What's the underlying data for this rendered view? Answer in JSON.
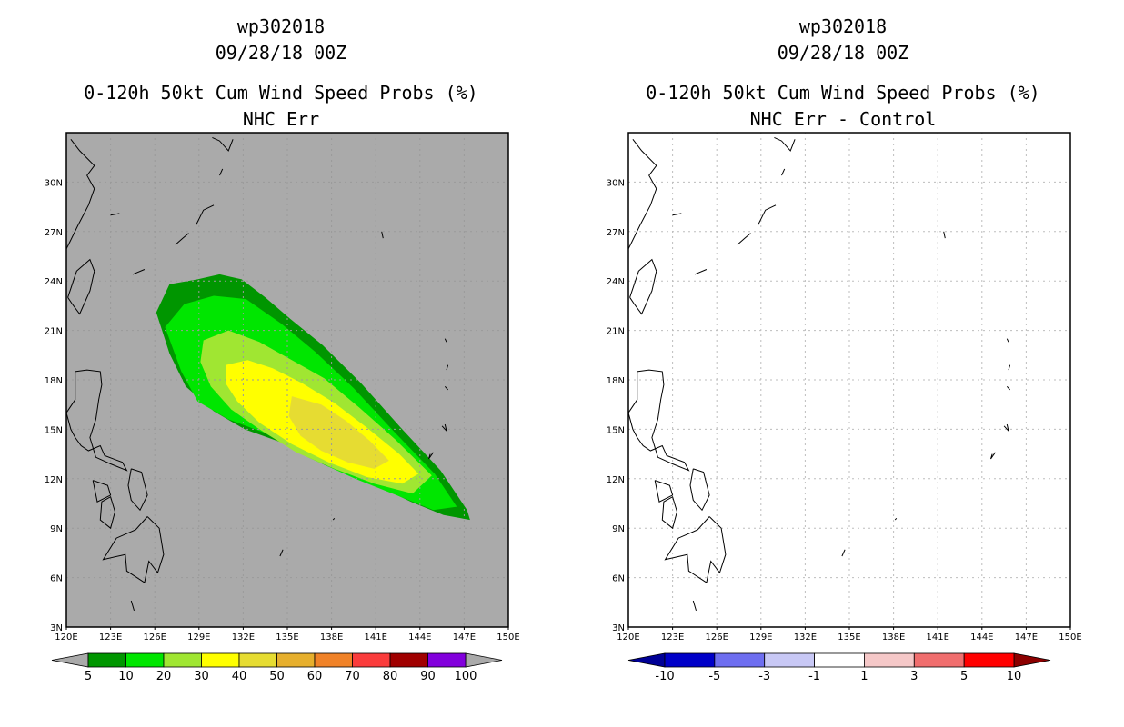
{
  "panels": [
    {
      "id": "left",
      "storm": "wp302018",
      "date": "09/28/18 00Z",
      "title": "0-120h 50kt Cum Wind Speed Probs (%)",
      "subtitle": "NHC Err",
      "map_background": "#aaaaaa",
      "colorbar_labels": [
        "5",
        "10",
        "20",
        "30",
        "40",
        "50",
        "60",
        "70",
        "80",
        "90",
        "100"
      ],
      "colorbar_colors": [
        "#009600",
        "#00e600",
        "#a0e632",
        "#ffff00",
        "#e6dc32",
        "#e6af2d",
        "#f08228",
        "#fa3c3c",
        "#a00000",
        "#8200dc"
      ],
      "under_color": "#aaaaaa",
      "over_color": "#aaaaaa"
    },
    {
      "id": "right",
      "storm": "wp302018",
      "date": "09/28/18 00Z",
      "title": "0-120h 50kt Cum Wind Speed Probs (%)",
      "subtitle": "NHC Err - Control",
      "map_background": "#ffffff",
      "colorbar_labels": [
        "-10",
        "-5",
        "-3",
        "-1",
        "1",
        "3",
        "5",
        "10"
      ],
      "colorbar_colors": [
        "#0000c8",
        "#6e6ef0",
        "#c8c8f5",
        "#ffffff",
        "#f5c8c8",
        "#f06e6e",
        "#ff0000"
      ],
      "under_color": "#000096",
      "over_color": "#8c0000"
    }
  ],
  "axes": {
    "lon_ticks": [
      "120E",
      "123E",
      "126E",
      "129E",
      "132E",
      "135E",
      "138E",
      "141E",
      "144E",
      "147E",
      "150E"
    ],
    "lat_ticks": [
      "3N",
      "6N",
      "9N",
      "12N",
      "15N",
      "18N",
      "21N",
      "24N",
      "27N",
      "30N"
    ],
    "lon_range": [
      120,
      150
    ],
    "lat_range": [
      3,
      33
    ]
  },
  "chart_data": [
    {
      "type": "heatmap",
      "title": "0-120h 50kt Cum Wind Speed Probs (%)",
      "subtitle": "NHC Err",
      "storm": "wp302018",
      "date": "09/28/18 00Z",
      "xlabel": "Longitude",
      "ylabel": "Latitude",
      "xlim": [
        120,
        150
      ],
      "ylim": [
        3,
        33
      ],
      "contour_levels": [
        5,
        10,
        20,
        30,
        40,
        50,
        60,
        70,
        80,
        90,
        100
      ],
      "contours": [
        {
          "level": 5,
          "color": "#009600",
          "polygon": [
            [
              126.1,
              22.1
            ],
            [
              127.0,
              23.8
            ],
            [
              128.9,
              24.1
            ],
            [
              130.4,
              24.4
            ],
            [
              131.9,
              24.1
            ],
            [
              133.5,
              23.0
            ],
            [
              135.2,
              21.7
            ],
            [
              137.4,
              20.1
            ],
            [
              140.0,
              17.8
            ],
            [
              142.7,
              15.1
            ],
            [
              145.4,
              12.5
            ],
            [
              147.2,
              10.1
            ],
            [
              147.4,
              9.5
            ],
            [
              145.6,
              9.8
            ],
            [
              143.4,
              10.6
            ],
            [
              140.8,
              11.7
            ],
            [
              137.6,
              12.8
            ],
            [
              134.6,
              14.2
            ],
            [
              132.1,
              15.0
            ],
            [
              130.0,
              16.1
            ],
            [
              128.1,
              17.6
            ],
            [
              127.0,
              19.6
            ]
          ]
        },
        {
          "level": 10,
          "color": "#00e600",
          "polygon": [
            [
              126.7,
              21.2
            ],
            [
              128.0,
              22.6
            ],
            [
              130.0,
              23.1
            ],
            [
              132.2,
              22.9
            ],
            [
              134.6,
              21.4
            ],
            [
              136.9,
              19.7
            ],
            [
              139.5,
              17.5
            ],
            [
              142.2,
              14.9
            ],
            [
              145.0,
              12.3
            ],
            [
              146.5,
              10.3
            ],
            [
              144.9,
              10.1
            ],
            [
              142.4,
              11.0
            ],
            [
              139.6,
              12.0
            ],
            [
              136.4,
              13.3
            ],
            [
              133.4,
              14.8
            ],
            [
              131.0,
              15.6
            ],
            [
              128.9,
              16.7
            ],
            [
              127.8,
              18.5
            ]
          ]
        },
        {
          "level": 20,
          "color": "#a0e632",
          "polygon": [
            [
              129.3,
              20.4
            ],
            [
              131.0,
              21.0
            ],
            [
              133.1,
              20.3
            ],
            [
              135.3,
              19.2
            ],
            [
              137.5,
              18.1
            ],
            [
              139.9,
              16.3
            ],
            [
              142.3,
              14.4
            ],
            [
              144.8,
              12.2
            ],
            [
              143.5,
              11.1
            ],
            [
              140.9,
              11.7
            ],
            [
              138.2,
              12.6
            ],
            [
              135.6,
              13.6
            ],
            [
              133.1,
              15.0
            ],
            [
              131.2,
              16.2
            ],
            [
              129.8,
              17.6
            ],
            [
              129.1,
              19.1
            ]
          ]
        },
        {
          "level": 30,
          "color": "#ffff00",
          "polygon": [
            [
              130.8,
              18.9
            ],
            [
              132.3,
              19.2
            ],
            [
              134.0,
              18.7
            ],
            [
              136.0,
              17.8
            ],
            [
              138.2,
              16.6
            ],
            [
              140.4,
              15.1
            ],
            [
              142.6,
              13.5
            ],
            [
              143.9,
              12.3
            ],
            [
              142.8,
              11.7
            ],
            [
              140.4,
              12.1
            ],
            [
              137.8,
              13.0
            ],
            [
              135.3,
              14.1
            ],
            [
              133.1,
              15.4
            ],
            [
              131.6,
              16.7
            ],
            [
              130.8,
              17.8
            ]
          ]
        },
        {
          "level": 40,
          "color": "#e6dc32",
          "polygon": [
            [
              135.3,
              17.0
            ],
            [
              137.3,
              16.5
            ],
            [
              139.0,
              15.5
            ],
            [
              140.6,
              14.3
            ],
            [
              141.9,
              13.1
            ],
            [
              140.9,
              12.6
            ],
            [
              139.1,
              13.0
            ],
            [
              137.3,
              13.7
            ],
            [
              135.9,
              14.6
            ],
            [
              135.1,
              15.8
            ]
          ]
        }
      ],
      "colorbar": {
        "labels": [
          5,
          10,
          20,
          30,
          40,
          50,
          60,
          70,
          80,
          90,
          100
        ]
      }
    },
    {
      "type": "heatmap",
      "title": "0-120h 50kt Cum Wind Speed Probs (%)",
      "subtitle": "NHC Err - Control",
      "storm": "wp302018",
      "date": "09/28/18 00Z",
      "xlabel": "Longitude",
      "ylabel": "Latitude",
      "xlim": [
        120,
        150
      ],
      "ylim": [
        3,
        33
      ],
      "contour_levels": [
        -10,
        -5,
        -3,
        -1,
        1,
        3,
        5,
        10
      ],
      "contours": [],
      "colorbar": {
        "labels": [
          -10,
          -5,
          -3,
          -1,
          1,
          3,
          5,
          10
        ]
      }
    }
  ],
  "coastlines": [
    [
      [
        120.3,
        32.6
      ],
      [
        120.9,
        31.9
      ],
      [
        121.9,
        31.0
      ],
      [
        121.4,
        30.4
      ],
      [
        121.9,
        29.6
      ],
      [
        121.5,
        28.6
      ],
      [
        120.8,
        27.4
      ],
      [
        120.2,
        26.3
      ],
      [
        119.8,
        25.6
      ]
    ],
    [
      [
        120.1,
        23.0
      ],
      [
        120.7,
        24.6
      ],
      [
        121.6,
        25.3
      ],
      [
        121.9,
        24.6
      ],
      [
        121.6,
        23.4
      ],
      [
        120.9,
        22.0
      ],
      [
        120.4,
        22.6
      ],
      [
        120.1,
        23.0
      ]
    ],
    [
      [
        120.6,
        18.5
      ],
      [
        120.6,
        16.8
      ],
      [
        120.0,
        16.0
      ],
      [
        120.3,
        15.0
      ],
      [
        120.6,
        14.5
      ],
      [
        121.0,
        14.0
      ],
      [
        121.5,
        13.7
      ],
      [
        122.3,
        14.0
      ],
      [
        122.6,
        13.4
      ],
      [
        123.8,
        13.0
      ],
      [
        124.1,
        12.5
      ],
      [
        123.0,
        12.9
      ],
      [
        122.0,
        13.3
      ],
      [
        121.6,
        14.5
      ],
      [
        122.0,
        15.6
      ],
      [
        122.2,
        16.8
      ],
      [
        122.4,
        17.7
      ],
      [
        122.3,
        18.5
      ],
      [
        121.4,
        18.6
      ],
      [
        120.6,
        18.5
      ]
    ],
    [
      [
        124.4,
        12.6
      ],
      [
        125.1,
        12.4
      ],
      [
        125.5,
        11.0
      ],
      [
        125.0,
        10.1
      ],
      [
        124.4,
        10.7
      ],
      [
        124.2,
        11.6
      ],
      [
        124.4,
        12.6
      ]
    ],
    [
      [
        123.3,
        10.0
      ],
      [
        123.0,
        9.0
      ],
      [
        122.3,
        9.5
      ],
      [
        122.4,
        10.6
      ],
      [
        123.0,
        10.9
      ],
      [
        123.3,
        10.0
      ]
    ],
    [
      [
        121.8,
        11.9
      ],
      [
        122.8,
        11.6
      ],
      [
        123.0,
        11.0
      ],
      [
        122.1,
        10.6
      ],
      [
        121.8,
        11.9
      ]
    ],
    [
      [
        125.5,
        9.7
      ],
      [
        126.3,
        9.0
      ],
      [
        126.6,
        7.4
      ],
      [
        126.2,
        6.3
      ],
      [
        125.6,
        7.0
      ],
      [
        125.3,
        5.7
      ],
      [
        124.1,
        6.4
      ],
      [
        124.0,
        7.4
      ],
      [
        122.5,
        7.1
      ],
      [
        123.4,
        8.4
      ],
      [
        124.7,
        8.9
      ],
      [
        125.5,
        9.7
      ]
    ],
    [
      [
        118.9,
        10.2
      ],
      [
        119.5,
        11.2
      ],
      [
        118.4,
        9.5
      ],
      [
        117.4,
        8.5
      ],
      [
        118.9,
        10.2
      ]
    ],
    [
      [
        123.0,
        28.0
      ],
      [
        123.6,
        28.1
      ]
    ],
    [
      [
        124.5,
        24.4
      ],
      [
        125.3,
        24.7
      ]
    ],
    [
      [
        127.4,
        26.2
      ],
      [
        127.9,
        26.6
      ],
      [
        128.3,
        26.9
      ]
    ],
    [
      [
        128.8,
        27.4
      ],
      [
        129.3,
        28.3
      ],
      [
        130.0,
        28.6
      ]
    ],
    [
      [
        130.4,
        30.4
      ],
      [
        130.6,
        30.8
      ]
    ],
    [
      [
        129.9,
        32.7
      ],
      [
        130.4,
        32.5
      ],
      [
        131.0,
        31.9
      ],
      [
        131.3,
        32.6
      ]
    ],
    [
      [
        129.7,
        33.0
      ],
      [
        130.5,
        33.4
      ],
      [
        131.4,
        33.1
      ]
    ],
    [
      [
        134.5,
        7.3
      ],
      [
        134.7,
        7.7
      ]
    ],
    [
      [
        138.1,
        9.5
      ],
      [
        138.2,
        9.6
      ]
    ],
    [
      [
        141.4,
        27.0
      ],
      [
        141.5,
        26.6
      ]
    ],
    [
      [
        145.7,
        20.5
      ],
      [
        145.8,
        20.3
      ]
    ],
    [
      [
        145.9,
        18.9
      ],
      [
        145.8,
        18.6
      ]
    ],
    [
      [
        145.7,
        17.6
      ],
      [
        145.9,
        17.4
      ]
    ],
    [
      [
        145.5,
        15.2
      ],
      [
        145.8,
        14.9
      ],
      [
        145.7,
        15.3
      ]
    ],
    [
      [
        144.9,
        13.6
      ],
      [
        144.6,
        13.2
      ],
      [
        144.7,
        13.5
      ]
    ],
    [
      [
        124.4,
        4.6
      ],
      [
        124.6,
        4.0
      ]
    ]
  ]
}
